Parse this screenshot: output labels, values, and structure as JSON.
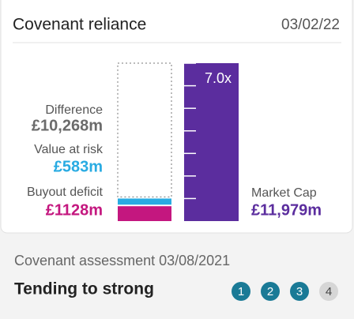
{
  "card": {
    "title": "Covenant reliance",
    "date": "03/02/22"
  },
  "chart_data": {
    "type": "stacked-bar",
    "series": [
      {
        "name": "Buyout deficit",
        "color": "#c4177f",
        "values": [
          1128
        ],
        "value_labels": [
          "£1128m"
        ]
      },
      {
        "name": "Value at risk",
        "color": "#29abe2",
        "values": [
          583
        ],
        "value_labels": [
          "£583m"
        ]
      },
      {
        "name": "Difference",
        "color": "#ffffff",
        "values": [
          10268
        ],
        "value_labels": [
          "£10,268m"
        ]
      }
    ],
    "comparison": {
      "name": "Market Cap",
      "color": "#5b2d9e",
      "value": 11979,
      "value_label": "£11,979m"
    },
    "annotation": "7.0x"
  },
  "assessment": {
    "title": "Covenant assessment 03/08/2021",
    "status": "Tending to strong",
    "steps": [
      1,
      2,
      3,
      4
    ],
    "active": 3
  }
}
